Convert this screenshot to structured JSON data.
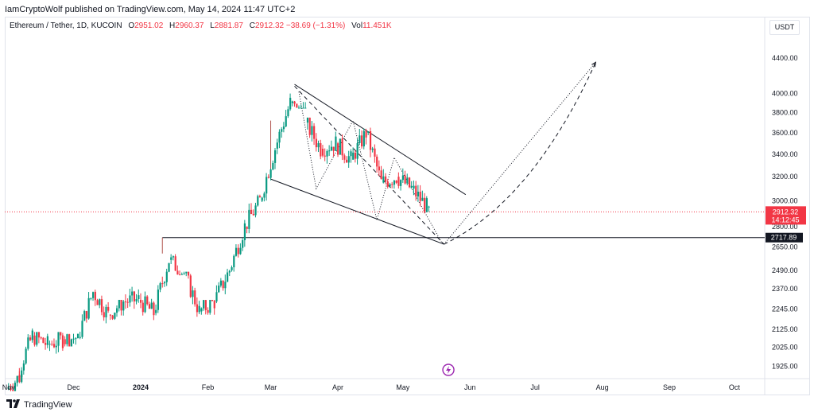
{
  "attribution": "IamCryptoWolf published on TradingView.com, May 14, 2024 11:47 UTC+2",
  "legend": {
    "symbol": "Ethereum / Tether, 1D, KUCOIN",
    "open_label": "O",
    "open": "2951.02",
    "high_label": "H",
    "high": "2960.37",
    "low_label": "L",
    "low": "2881.87",
    "close_label": "C",
    "close": "2912.32",
    "change": "−38.69 (−1.31%)",
    "vol_label": "Vol",
    "vol": "11.451K"
  },
  "currency": "USDT",
  "brand": "TradingView",
  "colors": {
    "up": "#089981",
    "down": "#f23645",
    "line": "#131722",
    "price_line": "#f23645",
    "lightning": "#9c27b0"
  },
  "chart_data": {
    "type": "candlestick",
    "y_scale": "log",
    "ylim": [
      1870,
      4700
    ],
    "xlim": [
      "2023-10-31",
      "2024-10-15"
    ],
    "x_tick_labels": [
      {
        "label": "Nov",
        "date": "2023-11-01"
      },
      {
        "label": "Dec",
        "date": "2023-12-01"
      },
      {
        "label": "2024",
        "date": "2024-01-01"
      },
      {
        "label": "Feb",
        "date": "2024-02-01"
      },
      {
        "label": "Mar",
        "date": "2024-03-01"
      },
      {
        "label": "Apr",
        "date": "2024-04-01"
      },
      {
        "label": "May",
        "date": "2024-05-01"
      },
      {
        "label": "Jun",
        "date": "2024-06-01"
      },
      {
        "label": "Jul",
        "date": "2024-07-01"
      },
      {
        "label": "Aug",
        "date": "2024-08-01"
      },
      {
        "label": "Sep",
        "date": "2024-09-01"
      },
      {
        "label": "Oct",
        "date": "2024-10-01"
      }
    ],
    "y_tick_labels": [
      "4400.00",
      "4000.00",
      "3800.00",
      "3600.00",
      "3400.00",
      "3200.00",
      "3000.00",
      "2800.00",
      "2650.00",
      "2490.00",
      "2370.00",
      "2245.00",
      "2125.00",
      "2025.00",
      "1925.00"
    ],
    "y_ticks": [
      4400,
      4000,
      3800,
      3600,
      3400,
      3200,
      3000,
      2800,
      2650,
      2490,
      2370,
      2245,
      2125,
      2025,
      1925
    ],
    "last_price": {
      "value": 2912.32,
      "label": "2912.32",
      "countdown": "14:12:45"
    },
    "support_level": {
      "value": 2717.89,
      "label": "2717.89",
      "from": "2024-01-11"
    },
    "candles_weekly_approx": [
      {
        "d": "2023-11-01",
        "o": 1810,
        "h": 1900,
        "l": 1800,
        "c": 1880
      },
      {
        "d": "2023-11-06",
        "o": 1880,
        "h": 2130,
        "l": 1870,
        "c": 2090
      },
      {
        "d": "2023-11-13",
        "o": 2090,
        "h": 2110,
        "l": 1990,
        "c": 2040
      },
      {
        "d": "2023-11-20",
        "o": 2040,
        "h": 2110,
        "l": 1950,
        "c": 2070
      },
      {
        "d": "2023-11-27",
        "o": 2070,
        "h": 2100,
        "l": 2030,
        "c": 2080
      },
      {
        "d": "2023-12-04",
        "o": 2080,
        "h": 2390,
        "l": 2070,
        "c": 2350
      },
      {
        "d": "2023-12-11",
        "o": 2350,
        "h": 2370,
        "l": 2160,
        "c": 2210
      },
      {
        "d": "2023-12-18",
        "o": 2210,
        "h": 2300,
        "l": 2180,
        "c": 2290
      },
      {
        "d": "2023-12-25",
        "o": 2290,
        "h": 2420,
        "l": 2210,
        "c": 2300
      },
      {
        "d": "2024-01-01",
        "o": 2300,
        "h": 2400,
        "l": 2100,
        "c": 2220
      },
      {
        "d": "2024-01-08",
        "o": 2220,
        "h": 2717,
        "l": 2200,
        "c": 2560
      },
      {
        "d": "2024-01-15",
        "o": 2560,
        "h": 2600,
        "l": 2460,
        "c": 2470
      },
      {
        "d": "2024-01-22",
        "o": 2470,
        "h": 2480,
        "l": 2180,
        "c": 2230
      },
      {
        "d": "2024-01-29",
        "o": 2230,
        "h": 2300,
        "l": 2210,
        "c": 2290
      },
      {
        "d": "2024-02-05",
        "o": 2290,
        "h": 2500,
        "l": 2280,
        "c": 2490
      },
      {
        "d": "2024-02-12",
        "o": 2490,
        "h": 2850,
        "l": 2480,
        "c": 2800
      },
      {
        "d": "2024-02-19",
        "o": 2800,
        "h": 3050,
        "l": 2750,
        "c": 3000
      },
      {
        "d": "2024-02-26",
        "o": 3000,
        "h": 3500,
        "l": 2990,
        "c": 3450
      },
      {
        "d": "2024-03-04",
        "o": 3450,
        "h": 4000,
        "l": 3400,
        "c": 3900
      },
      {
        "d": "2024-03-11",
        "o": 3900,
        "h": 4100,
        "l": 3850,
        "c": 3700
      },
      {
        "d": "2024-03-18",
        "o": 3700,
        "h": 3750,
        "l": 3100,
        "c": 3450
      },
      {
        "d": "2024-03-25",
        "o": 3450,
        "h": 3650,
        "l": 3300,
        "c": 3500
      },
      {
        "d": "2024-04-01",
        "o": 3500,
        "h": 3600,
        "l": 3200,
        "c": 3350
      },
      {
        "d": "2024-04-08",
        "o": 3350,
        "h": 3730,
        "l": 3300,
        "c": 3600
      },
      {
        "d": "2024-04-15",
        "o": 3600,
        "h": 3650,
        "l": 2900,
        "c": 3150
      },
      {
        "d": "2024-04-22",
        "o": 3150,
        "h": 3300,
        "l": 3100,
        "c": 3200
      },
      {
        "d": "2024-04-29",
        "o": 3200,
        "h": 3330,
        "l": 2850,
        "c": 3100
      },
      {
        "d": "2024-05-06",
        "o": 3100,
        "h": 3200,
        "l": 2900,
        "c": 2950
      },
      {
        "d": "2024-05-13",
        "o": 2951,
        "h": 2960,
        "l": 2882,
        "c": 2912
      }
    ],
    "drawings": {
      "channel_upper": [
        {
          "d": "2024-03-12",
          "y": 4100
        },
        {
          "d": "2024-05-30",
          "y": 3050
        }
      ],
      "channel_lower": [
        {
          "d": "2024-03-01",
          "y": 3180
        },
        {
          "d": "2024-05-20",
          "y": 2670
        }
      ],
      "channel_left_edge": [
        {
          "d": "2024-03-01",
          "y": 3180
        },
        {
          "d": "2024-03-01",
          "y": 3720
        }
      ],
      "dashed_decline": [
        {
          "d": "2024-03-12",
          "y": 4080
        },
        {
          "d": "2024-05-20",
          "y": 2670
        }
      ],
      "dotted_zigzag": [
        {
          "d": "2024-03-14",
          "y": 4020
        },
        {
          "d": "2024-03-22",
          "y": 3100
        },
        {
          "d": "2024-04-08",
          "y": 3720
        },
        {
          "d": "2024-04-19",
          "y": 2850
        },
        {
          "d": "2024-04-27",
          "y": 3370
        },
        {
          "d": "2024-05-19",
          "y": 2680
        }
      ],
      "dotted_projection": [
        {
          "d": "2024-05-20",
          "y": 2670
        },
        {
          "d": "2024-07-29",
          "y": 4350
        }
      ],
      "dashed_projection": [
        {
          "d": "2024-05-20",
          "y": 2670
        },
        {
          "d": "2024-06-30",
          "y": 3000
        },
        {
          "d": "2024-07-29",
          "y": 4350
        }
      ]
    }
  }
}
